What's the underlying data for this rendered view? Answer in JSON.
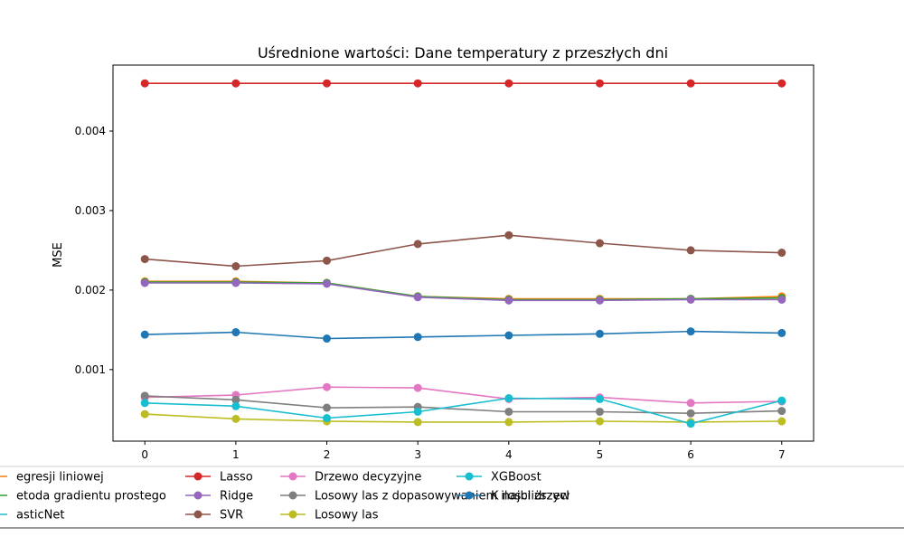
{
  "chart_data": {
    "type": "line",
    "title": "Uśrednione wartości: Dane temperatury z przeszłych dni",
    "xlabel": "",
    "ylabel": "MSE",
    "x": [
      0,
      1,
      2,
      3,
      4,
      5,
      6,
      7
    ],
    "xlim": [
      -0.35,
      7.35
    ],
    "ylim": [
      0.0001,
      0.00483
    ],
    "yticks": [
      0.001,
      0.002,
      0.003,
      0.004
    ],
    "ytick_labels": [
      "0.001",
      "0.002",
      "0.003",
      "0.004"
    ],
    "grid": false,
    "legend_placement": "below-plot",
    "series": [
      {
        "name": "Metoda regresji liniowej",
        "legend_label": "egresji liniowej",
        "color": "#ff7f0e",
        "values": [
          0.00211,
          0.00211,
          0.00209,
          0.00192,
          0.00189,
          0.00189,
          0.00189,
          0.00192
        ]
      },
      {
        "name": "Metoda gradientu prostego",
        "legend_label": "etoda gradientu prostego",
        "color": "#2ca02c",
        "values": [
          0.0021,
          0.0021,
          0.00209,
          0.00192,
          0.00188,
          0.00188,
          0.00189,
          0.0019
        ]
      },
      {
        "name": "ElasticNet",
        "legend_label": "asticNet",
        "color": "#17becf",
        "values": null
      },
      {
        "name": "Lasso",
        "legend_label": "Lasso",
        "color": "#d62728",
        "values": [
          0.0046,
          0.0046,
          0.0046,
          0.0046,
          0.0046,
          0.0046,
          0.0046,
          0.0046
        ]
      },
      {
        "name": "Ridge",
        "legend_label": "Ridge",
        "color": "#9467bd",
        "values": [
          0.00209,
          0.00209,
          0.00208,
          0.00191,
          0.00187,
          0.00187,
          0.00188,
          0.00188
        ]
      },
      {
        "name": "SVR",
        "legend_label": "SVR",
        "color": "#8c564b",
        "values": [
          0.00239,
          0.0023,
          0.00237,
          0.00258,
          0.00269,
          0.00259,
          0.0025,
          0.00247
        ]
      },
      {
        "name": "Drzewo decyzyjne",
        "legend_label": "Drzewo decyzyjne",
        "color": "#e377c2",
        "values": [
          0.00065,
          0.00068,
          0.00078,
          0.00077,
          0.00063,
          0.00065,
          0.00058,
          0.0006
        ]
      },
      {
        "name": "Losowy las z dopasowywaniem ilosci drzew",
        "legend_label": "Losowy las z dopasowywaniem ilosci drzew",
        "color": "#7f7f7f",
        "values": [
          0.00067,
          0.00062,
          0.00052,
          0.00053,
          0.00047,
          0.00047,
          0.00045,
          0.00048
        ]
      },
      {
        "name": "Losowy las",
        "legend_label": "Losowy las",
        "color": "#bcbd22",
        "values": [
          0.00044,
          0.00038,
          0.00035,
          0.00034,
          0.00034,
          0.00035,
          0.00034,
          0.00035
        ]
      },
      {
        "name": "XGBoost",
        "legend_label": "XGBoost",
        "color": "#17becf",
        "values": [
          0.00058,
          0.00054,
          0.00039,
          0.00047,
          0.00064,
          0.00063,
          0.00032,
          0.00061
        ]
      },
      {
        "name": "K najbliższych sąsiadów",
        "legend_label": "K najbliższycl",
        "color": "#1f77b4",
        "values": [
          0.00144,
          0.00147,
          0.00139,
          0.00141,
          0.00143,
          0.00145,
          0.00148,
          0.00146
        ]
      }
    ]
  }
}
